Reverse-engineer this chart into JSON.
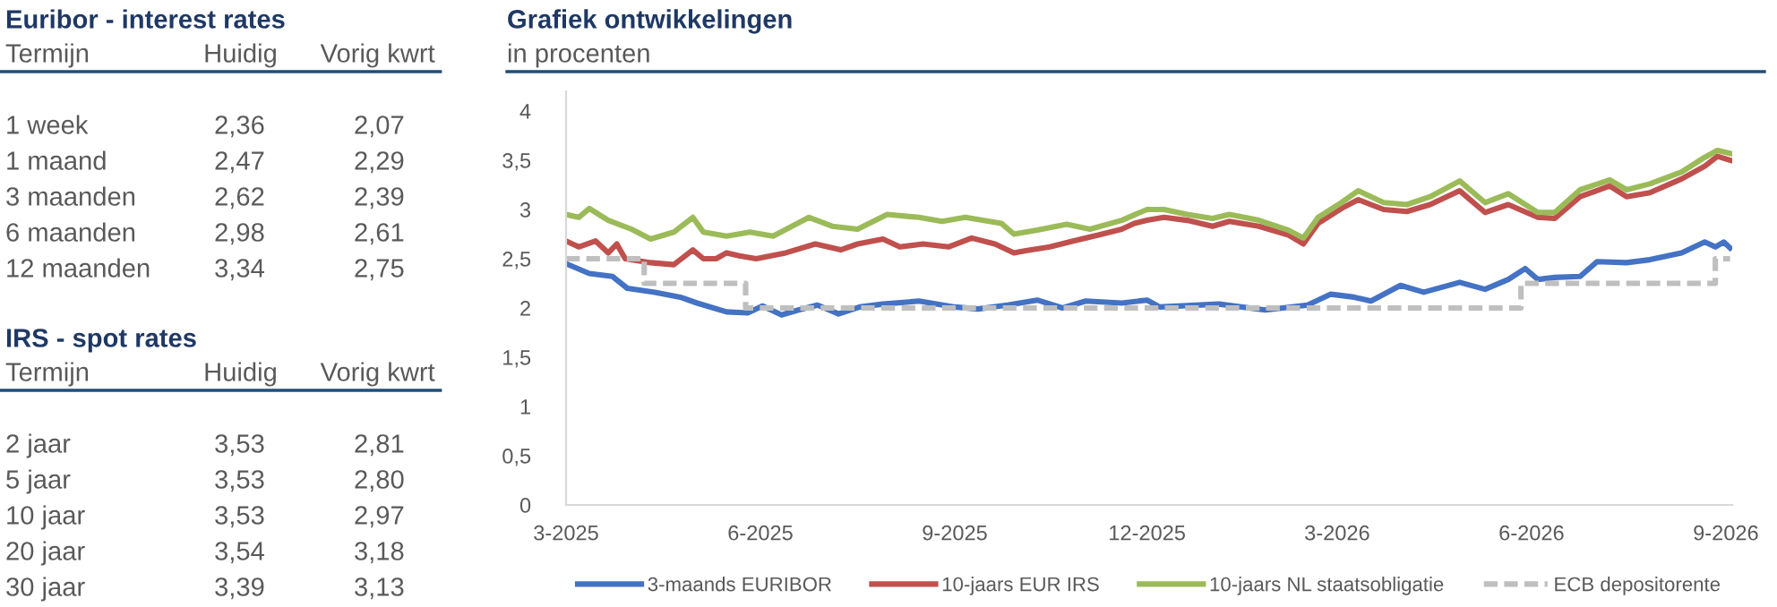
{
  "chart_data": [
    {
      "type": "other",
      "title": "Euribor - interest rates",
      "annotations": [
        "Termijn"
      ],
      "categories": [
        "1 week",
        "1 maand",
        "3 maanden",
        "6 maanden",
        "12 maanden"
      ],
      "series": [
        {
          "name": "Huidig",
          "values": [
            2.36,
            2.47,
            2.62,
            2.98,
            3.34
          ],
          "value_labels": [
            "2,36",
            "2,47",
            "2,62",
            "2,98",
            "3,34"
          ]
        },
        {
          "name": "Vorig kwrt",
          "values": [
            2.07,
            2.29,
            2.39,
            2.61,
            2.75
          ],
          "value_labels": [
            "2,07",
            "2,29",
            "2,39",
            "2,61",
            "2,75"
          ]
        }
      ]
    },
    {
      "type": "other",
      "title": "IRS - spot rates",
      "annotations": [
        "Termijn"
      ],
      "categories": [
        "2 jaar",
        "5 jaar",
        "10 jaar",
        "20 jaar",
        "30 jaar"
      ],
      "series": [
        {
          "name": "Huidig",
          "values": [
            3.53,
            3.53,
            3.53,
            3.54,
            3.39
          ],
          "value_labels": [
            "3,53",
            "3,53",
            "3,53",
            "3,54",
            "3,39"
          ]
        },
        {
          "name": "Vorig kwrt",
          "values": [
            2.81,
            2.8,
            2.97,
            3.18,
            3.13
          ],
          "value_labels": [
            "2,81",
            "2,80",
            "2,97",
            "3,18",
            "3,13"
          ]
        }
      ]
    },
    {
      "type": "line",
      "title": "Grafiek ontwikkelingen",
      "subtitle": "in procenten",
      "legend": "bottom",
      "grid": false,
      "xlim": [
        "2025-03-01",
        "2026-09-04"
      ],
      "ylim": [
        0,
        4.2
      ],
      "xticks": [
        {
          "value": "2025-03",
          "label": "3-2025"
        },
        {
          "value": "2025-06",
          "label": "6-2025"
        },
        {
          "value": "2025-09",
          "label": "9-2025"
        },
        {
          "value": "2025-12",
          "label": "12-2025"
        },
        {
          "value": "2026-03",
          "label": "3-2026"
        },
        {
          "value": "2026-06",
          "label": "6-2026"
        },
        {
          "value": "2026-09",
          "label": "9-2026"
        }
      ],
      "yticks": [
        0,
        {
          "value": 0.5,
          "label": "0,5"
        },
        1,
        {
          "value": 1.5,
          "label": "1,5"
        },
        2,
        {
          "value": 2.5,
          "label": "2,5"
        },
        3,
        {
          "value": 3.5,
          "label": "3,5"
        },
        4
      ],
      "series": [
        {
          "name": "3-maands EURIBOR",
          "color": "#4472c4",
          "x": [
            "2025-03-01",
            "2025-03-12",
            "2025-03-23",
            "2025-03-30",
            "2025-04-12",
            "2025-04-24",
            "2025-05-02",
            "2025-05-16",
            "2025-05-26",
            "2025-06-02",
            "2025-06-11",
            "2025-06-19",
            "2025-06-28",
            "2025-07-08",
            "2025-07-18",
            "2025-07-29",
            "2025-08-15",
            "2025-09-01",
            "2025-09-12",
            "2025-09-26",
            "2025-10-10",
            "2025-10-22",
            "2025-11-02",
            "2025-11-19",
            "2025-12-01",
            "2025-12-07",
            "2026-01-04",
            "2026-01-26",
            "2026-02-15",
            "2026-02-26",
            "2026-03-09",
            "2026-03-17",
            "2026-03-31",
            "2026-04-11",
            "2026-04-28",
            "2026-05-10",
            "2026-05-21",
            "2026-05-29",
            "2026-06-04",
            "2026-06-12",
            "2026-06-24",
            "2026-07-02",
            "2026-07-16",
            "2026-07-27",
            "2026-08-11",
            "2026-08-22",
            "2026-08-27",
            "2026-08-31",
            "2026-09-03"
          ],
          "values": [
            2.45,
            2.35,
            2.32,
            2.2,
            2.16,
            2.11,
            2.05,
            1.96,
            1.95,
            2.02,
            1.93,
            1.98,
            2.03,
            1.94,
            2.01,
            2.04,
            2.07,
            2.01,
            1.99,
            2.03,
            2.08,
            2.0,
            2.07,
            2.05,
            2.08,
            2.01,
            2.04,
            1.98,
            2.03,
            2.14,
            2.11,
            2.07,
            2.23,
            2.16,
            2.26,
            2.19,
            2.29,
            2.4,
            2.29,
            2.31,
            2.32,
            2.47,
            2.46,
            2.49,
            2.56,
            2.67,
            2.62,
            2.67,
            2.61
          ]
        },
        {
          "name": "10-jaars EUR IRS",
          "color": "#c0504d",
          "x": [
            "2025-03-01",
            "2025-03-07",
            "2025-03-15",
            "2025-03-21",
            "2025-03-25",
            "2025-03-29",
            "2025-04-10",
            "2025-04-21",
            "2025-04-30",
            "2025-05-05",
            "2025-05-11",
            "2025-05-16",
            "2025-05-22",
            "2025-05-30",
            "2025-06-13",
            "2025-06-27",
            "2025-07-09",
            "2025-07-17",
            "2025-07-29",
            "2025-08-06",
            "2025-08-17",
            "2025-08-29",
            "2025-09-09",
            "2025-09-20",
            "2025-09-29",
            "2025-10-04",
            "2025-10-16",
            "2025-10-27",
            "2025-11-08",
            "2025-11-19",
            "2025-11-25",
            "2025-12-01",
            "2025-12-09",
            "2025-12-20",
            "2026-01-01",
            "2026-01-09",
            "2026-01-23",
            "2026-02-06",
            "2026-02-13",
            "2026-02-20",
            "2026-03-03",
            "2026-03-11",
            "2026-03-23",
            "2026-04-03",
            "2026-04-14",
            "2026-04-28",
            "2026-05-10",
            "2026-05-21",
            "2026-06-04",
            "2026-06-12",
            "2026-06-24",
            "2026-07-08",
            "2026-07-16",
            "2026-07-27",
            "2026-08-11",
            "2026-08-22",
            "2026-08-28",
            "2026-09-03"
          ],
          "values": [
            2.68,
            2.62,
            2.68,
            2.56,
            2.65,
            2.5,
            2.46,
            2.44,
            2.59,
            2.5,
            2.5,
            2.56,
            2.53,
            2.5,
            2.56,
            2.65,
            2.59,
            2.65,
            2.7,
            2.62,
            2.65,
            2.62,
            2.71,
            2.65,
            2.56,
            2.58,
            2.62,
            2.68,
            2.74,
            2.8,
            2.86,
            2.89,
            2.92,
            2.89,
            2.83,
            2.88,
            2.83,
            2.74,
            2.65,
            2.86,
            3.01,
            3.1,
            3.0,
            2.98,
            3.05,
            3.19,
            2.97,
            3.05,
            2.92,
            2.91,
            3.13,
            3.24,
            3.13,
            3.17,
            3.31,
            3.44,
            3.54,
            3.5
          ]
        },
        {
          "name": "10-jaars NL staatsobligatie",
          "color": "#9bbb59",
          "x": [
            "2025-03-01",
            "2025-03-07",
            "2025-03-12",
            "2025-03-21",
            "2025-04-01",
            "2025-04-10",
            "2025-04-21",
            "2025-04-30",
            "2025-05-05",
            "2025-05-16",
            "2025-05-27",
            "2025-06-07",
            "2025-06-24",
            "2025-07-05",
            "2025-07-17",
            "2025-07-31",
            "2025-08-15",
            "2025-08-26",
            "2025-09-06",
            "2025-09-23",
            "2025-09-29",
            "2025-10-10",
            "2025-10-24",
            "2025-11-04",
            "2025-11-19",
            "2025-12-01",
            "2025-12-09",
            "2025-12-20",
            "2026-01-01",
            "2026-01-09",
            "2026-01-23",
            "2026-02-06",
            "2026-02-13",
            "2026-02-20",
            "2026-03-03",
            "2026-03-11",
            "2026-03-23",
            "2026-04-03",
            "2026-04-14",
            "2026-04-28",
            "2026-05-10",
            "2026-05-21",
            "2026-06-04",
            "2026-06-12",
            "2026-06-24",
            "2026-07-08",
            "2026-07-16",
            "2026-07-27",
            "2026-08-11",
            "2026-08-22",
            "2026-08-28",
            "2026-09-03"
          ],
          "values": [
            2.95,
            2.92,
            3.01,
            2.89,
            2.8,
            2.7,
            2.77,
            2.92,
            2.77,
            2.73,
            2.77,
            2.73,
            2.92,
            2.83,
            2.8,
            2.95,
            2.92,
            2.88,
            2.92,
            2.86,
            2.75,
            2.79,
            2.85,
            2.8,
            2.89,
            3.0,
            3.0,
            2.95,
            2.91,
            2.95,
            2.89,
            2.79,
            2.71,
            2.92,
            3.07,
            3.19,
            3.07,
            3.05,
            3.13,
            3.29,
            3.07,
            3.16,
            2.97,
            2.97,
            3.2,
            3.3,
            3.2,
            3.26,
            3.38,
            3.53,
            3.6,
            3.57
          ]
        },
        {
          "name": "ECB depositorente",
          "color": "#bfbfbf",
          "type": "step",
          "line_style": "dashed",
          "x": [
            "2025-03-01",
            "2025-04-07",
            "2025-05-25",
            "2026-05-27",
            "2026-08-27",
            "2026-09-03"
          ],
          "values": [
            2.5,
            2.25,
            2.0,
            2.25,
            2.5,
            2.5
          ]
        }
      ]
    }
  ]
}
